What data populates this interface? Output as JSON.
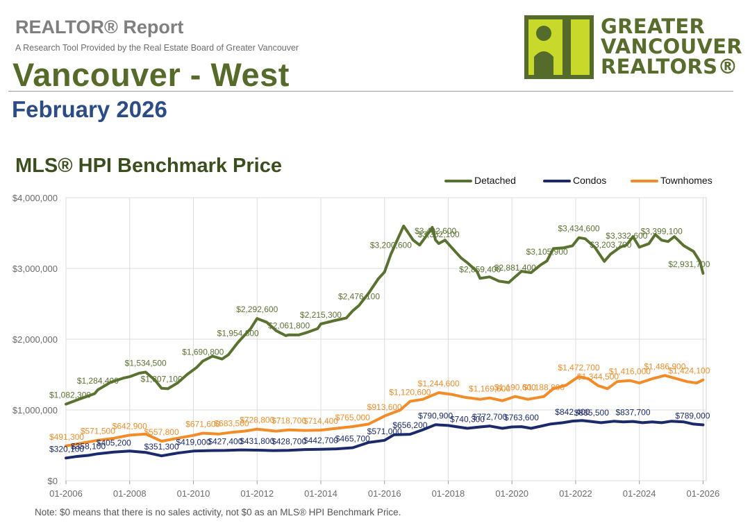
{
  "header": {
    "report_label": "REALTOR® Report",
    "report_subtitle": "A Research Tool Provided by the Real Estate Board of Greater Vancouver",
    "area_title": "Vancouver - West",
    "month": "February 2026",
    "logo_lines": [
      "GREATER",
      "VANCOUVER",
      "REALTORS®"
    ]
  },
  "colors": {
    "detached": "#5a7230",
    "condos": "#1a2a6b",
    "townhomes": "#f28c28",
    "title_green": "#566b2a",
    "month_blue": "#2b4c87"
  },
  "note": "Note: $0 means that there is no sales activity, not $0 as an MLS® HPI Benchmark Price.",
  "chart_data": {
    "type": "line",
    "title": "MLS® HPI Benchmark Price",
    "xlabel": "",
    "ylabel": "",
    "x_start": "01-2006",
    "x_end": "02-2026",
    "x_ticks": [
      "01-2006",
      "01-2008",
      "01-2010",
      "01-2012",
      "01-2014",
      "01-2016",
      "01-2018",
      "01-2020",
      "01-2022",
      "01-2024",
      "01-2026"
    ],
    "y_ticks": [
      "$0",
      "$1,000,000",
      "$2,000,000",
      "$3,000,000",
      "$4,000,000"
    ],
    "ylim": [
      0,
      4000000
    ],
    "legend_position": "top-right",
    "grid": true,
    "series": [
      {
        "name": "Detached",
        "points": [
          [
            2006.0,
            1082300
          ],
          [
            2006.4,
            1150000
          ],
          [
            2006.9,
            1230000
          ],
          [
            2007.0,
            1284400
          ],
          [
            2007.4,
            1390000
          ],
          [
            2007.8,
            1450000
          ],
          [
            2008.0,
            1470000
          ],
          [
            2008.3,
            1520000
          ],
          [
            2008.5,
            1534500
          ],
          [
            2008.8,
            1420000
          ],
          [
            2009.0,
            1307100
          ],
          [
            2009.2,
            1300000
          ],
          [
            2009.5,
            1380000
          ],
          [
            2009.8,
            1500000
          ],
          [
            2010.1,
            1600000
          ],
          [
            2010.3,
            1690800
          ],
          [
            2010.6,
            1760000
          ],
          [
            2010.9,
            1720000
          ],
          [
            2011.1,
            1780000
          ],
          [
            2011.4,
            1954800
          ],
          [
            2011.8,
            2150000
          ],
          [
            2012.0,
            2292600
          ],
          [
            2012.3,
            2240000
          ],
          [
            2012.6,
            2120000
          ],
          [
            2012.9,
            2050000
          ],
          [
            2013.0,
            2061800
          ],
          [
            2013.3,
            2060000
          ],
          [
            2013.6,
            2100000
          ],
          [
            2013.9,
            2150000
          ],
          [
            2014.0,
            2215300
          ],
          [
            2014.4,
            2260000
          ],
          [
            2014.8,
            2300000
          ],
          [
            2015.0,
            2400000
          ],
          [
            2015.2,
            2476100
          ],
          [
            2015.5,
            2650000
          ],
          [
            2015.8,
            2850000
          ],
          [
            2016.0,
            2950000
          ],
          [
            2016.2,
            3200600
          ],
          [
            2016.5,
            3500000
          ],
          [
            2016.6,
            3600000
          ],
          [
            2016.9,
            3400000
          ],
          [
            2017.1,
            3330000
          ],
          [
            2017.3,
            3450000
          ],
          [
            2017.5,
            3580000
          ],
          [
            2017.6,
            3402600
          ],
          [
            2017.7,
            3352100
          ],
          [
            2017.9,
            3400000
          ],
          [
            2018.1,
            3300000
          ],
          [
            2018.4,
            3150000
          ],
          [
            2018.6,
            3080000
          ],
          [
            2018.9,
            2960000
          ],
          [
            2019.0,
            2859400
          ],
          [
            2019.3,
            2880000
          ],
          [
            2019.6,
            2820000
          ],
          [
            2019.9,
            2800000
          ],
          [
            2020.1,
            2881400
          ],
          [
            2020.3,
            2960000
          ],
          [
            2020.6,
            2940000
          ],
          [
            2020.9,
            3050000
          ],
          [
            2021.1,
            3105900
          ],
          [
            2021.3,
            3280000
          ],
          [
            2021.6,
            3290000
          ],
          [
            2021.9,
            3320000
          ],
          [
            2022.1,
            3434600
          ],
          [
            2022.3,
            3420000
          ],
          [
            2022.6,
            3300000
          ],
          [
            2022.9,
            3100000
          ],
          [
            2023.1,
            3203700
          ],
          [
            2023.4,
            3300000
          ],
          [
            2023.6,
            3332600
          ],
          [
            2023.8,
            3450000
          ],
          [
            2024.0,
            3300000
          ],
          [
            2024.3,
            3350000
          ],
          [
            2024.5,
            3480000
          ],
          [
            2024.7,
            3399100
          ],
          [
            2024.9,
            3380000
          ],
          [
            2025.1,
            3450000
          ],
          [
            2025.4,
            3320000
          ],
          [
            2025.7,
            3240000
          ],
          [
            2025.9,
            3100000
          ],
          [
            2026.0,
            2931700
          ]
        ],
        "labels": [
          {
            "x": 2006.0,
            "y": 1082300,
            "text": "$1,082,300"
          },
          {
            "x": 2007.0,
            "y": 1284400,
            "text": "$1,284,400"
          },
          {
            "x": 2008.5,
            "y": 1534500,
            "text": "$1,534,500"
          },
          {
            "x": 2009.0,
            "y": 1307100,
            "text": "$1,307,100"
          },
          {
            "x": 2010.3,
            "y": 1690800,
            "text": "$1,690,800"
          },
          {
            "x": 2011.4,
            "y": 1954800,
            "text": "$1,954,800"
          },
          {
            "x": 2012.0,
            "y": 2292600,
            "text": "$2,292,600"
          },
          {
            "x": 2013.0,
            "y": 2061800,
            "text": "$2,061,800"
          },
          {
            "x": 2014.0,
            "y": 2215300,
            "text": "$2,215,300"
          },
          {
            "x": 2015.2,
            "y": 2476100,
            "text": "$2,476,100"
          },
          {
            "x": 2016.2,
            "y": 3200600,
            "text": "$3,200,600"
          },
          {
            "x": 2017.6,
            "y": 3402600,
            "text": "$3,402,600"
          },
          {
            "x": 2017.7,
            "y": 3352100,
            "text": "$3,352,100"
          },
          {
            "x": 2019.0,
            "y": 2859400,
            "text": "$2,859,400"
          },
          {
            "x": 2020.1,
            "y": 2881400,
            "text": "$2,881,400"
          },
          {
            "x": 2021.1,
            "y": 3105900,
            "text": "$3,105,900"
          },
          {
            "x": 2022.1,
            "y": 3434600,
            "text": "$3,434,600"
          },
          {
            "x": 2023.1,
            "y": 3203700,
            "text": "$3,203,700"
          },
          {
            "x": 2023.6,
            "y": 3332600,
            "text": "$3,332,600"
          },
          {
            "x": 2024.7,
            "y": 3399100,
            "text": "$3,399,100"
          },
          {
            "x": 2026.0,
            "y": 2931700,
            "text": "$2,931,700"
          }
        ]
      },
      {
        "name": "Condos",
        "points": [
          [
            2006.0,
            320100
          ],
          [
            2006.3,
            340000
          ],
          [
            2006.7,
            358100
          ],
          [
            2007.0,
            380000
          ],
          [
            2007.5,
            405200
          ],
          [
            2008.0,
            420000
          ],
          [
            2008.5,
            400000
          ],
          [
            2009.0,
            351300
          ],
          [
            2009.5,
            390000
          ],
          [
            2010.0,
            419000
          ],
          [
            2010.5,
            425000
          ],
          [
            2011.0,
            427400
          ],
          [
            2011.5,
            435000
          ],
          [
            2012.0,
            431800
          ],
          [
            2012.5,
            425000
          ],
          [
            2013.0,
            428700
          ],
          [
            2013.5,
            440000
          ],
          [
            2014.0,
            442700
          ],
          [
            2014.5,
            450000
          ],
          [
            2015.0,
            465700
          ],
          [
            2015.5,
            540000
          ],
          [
            2016.0,
            571000
          ],
          [
            2016.3,
            650000
          ],
          [
            2016.8,
            656200
          ],
          [
            2017.2,
            720000
          ],
          [
            2017.6,
            790900
          ],
          [
            2018.0,
            780000
          ],
          [
            2018.3,
            760000
          ],
          [
            2018.6,
            740300
          ],
          [
            2019.0,
            760000
          ],
          [
            2019.3,
            772700
          ],
          [
            2019.7,
            740000
          ],
          [
            2020.0,
            760000
          ],
          [
            2020.3,
            763600
          ],
          [
            2020.6,
            740000
          ],
          [
            2020.9,
            770000
          ],
          [
            2021.2,
            800000
          ],
          [
            2021.6,
            820000
          ],
          [
            2021.9,
            842400
          ],
          [
            2022.2,
            850000
          ],
          [
            2022.5,
            835500
          ],
          [
            2022.8,
            820000
          ],
          [
            2023.2,
            840000
          ],
          [
            2023.5,
            830000
          ],
          [
            2023.8,
            837700
          ],
          [
            2024.1,
            820000
          ],
          [
            2024.4,
            830000
          ],
          [
            2024.7,
            820000
          ],
          [
            2025.0,
            840000
          ],
          [
            2025.4,
            830000
          ],
          [
            2025.7,
            800000
          ],
          [
            2026.0,
            789000
          ]
        ],
        "labels": [
          {
            "x": 2006.0,
            "y": 320100,
            "text": "$320,100"
          },
          {
            "x": 2006.7,
            "y": 358100,
            "text": "$358,100"
          },
          {
            "x": 2007.5,
            "y": 405200,
            "text": "$405,200"
          },
          {
            "x": 2009.0,
            "y": 351300,
            "text": "$351,300"
          },
          {
            "x": 2010.0,
            "y": 419000,
            "text": "$419,000"
          },
          {
            "x": 2011.0,
            "y": 427400,
            "text": "$427,400"
          },
          {
            "x": 2012.0,
            "y": 431800,
            "text": "$431,800"
          },
          {
            "x": 2013.0,
            "y": 428700,
            "text": "$428,700"
          },
          {
            "x": 2014.0,
            "y": 442700,
            "text": "$442,700"
          },
          {
            "x": 2015.0,
            "y": 465700,
            "text": "$465,700"
          },
          {
            "x": 2016.0,
            "y": 571000,
            "text": "$571,000"
          },
          {
            "x": 2016.8,
            "y": 656200,
            "text": "$656,200"
          },
          {
            "x": 2017.6,
            "y": 790900,
            "text": "$790,900"
          },
          {
            "x": 2018.6,
            "y": 740300,
            "text": "$740,300"
          },
          {
            "x": 2019.3,
            "y": 772700,
            "text": "$772,700"
          },
          {
            "x": 2020.3,
            "y": 763600,
            "text": "$763,600"
          },
          {
            "x": 2021.9,
            "y": 842400,
            "text": "$842,400"
          },
          {
            "x": 2022.5,
            "y": 835500,
            "text": "$835,500"
          },
          {
            "x": 2023.8,
            "y": 837700,
            "text": "$837,700"
          },
          {
            "x": 2026.0,
            "y": 789000,
            "text": "$789,000"
          }
        ]
      },
      {
        "name": "Townhomes",
        "points": [
          [
            2006.0,
            491300
          ],
          [
            2006.5,
            530000
          ],
          [
            2007.0,
            571500
          ],
          [
            2007.5,
            600000
          ],
          [
            2008.0,
            642900
          ],
          [
            2008.5,
            660000
          ],
          [
            2009.0,
            557800
          ],
          [
            2009.5,
            600000
          ],
          [
            2010.0,
            640000
          ],
          [
            2010.3,
            671600
          ],
          [
            2010.8,
            660000
          ],
          [
            2011.2,
            683500
          ],
          [
            2011.6,
            700000
          ],
          [
            2012.0,
            728800
          ],
          [
            2012.6,
            700000
          ],
          [
            2013.0,
            718700
          ],
          [
            2013.5,
            710000
          ],
          [
            2014.0,
            714400
          ],
          [
            2014.5,
            740000
          ],
          [
            2015.0,
            765000
          ],
          [
            2015.5,
            800000
          ],
          [
            2016.0,
            913600
          ],
          [
            2016.5,
            1000000
          ],
          [
            2016.8,
            1120600
          ],
          [
            2017.2,
            1150000
          ],
          [
            2017.7,
            1244600
          ],
          [
            2018.1,
            1220000
          ],
          [
            2018.5,
            1180000
          ],
          [
            2019.0,
            1150000
          ],
          [
            2019.3,
            1169600
          ],
          [
            2019.7,
            1130000
          ],
          [
            2020.1,
            1190600
          ],
          [
            2020.5,
            1150000
          ],
          [
            2021.0,
            1188800
          ],
          [
            2021.3,
            1300000
          ],
          [
            2021.7,
            1350000
          ],
          [
            2022.1,
            1472700
          ],
          [
            2022.4,
            1440000
          ],
          [
            2022.7,
            1344500
          ],
          [
            2023.0,
            1300000
          ],
          [
            2023.3,
            1400000
          ],
          [
            2023.7,
            1416000
          ],
          [
            2024.0,
            1380000
          ],
          [
            2024.4,
            1440000
          ],
          [
            2024.8,
            1486900
          ],
          [
            2025.1,
            1450000
          ],
          [
            2025.5,
            1400000
          ],
          [
            2025.8,
            1380000
          ],
          [
            2026.0,
            1424100
          ]
        ],
        "labels": [
          {
            "x": 2006.0,
            "y": 491300,
            "text": "$491,300"
          },
          {
            "x": 2007.0,
            "y": 571500,
            "text": "$571,500"
          },
          {
            "x": 2008.0,
            "y": 642900,
            "text": "$642,900"
          },
          {
            "x": 2009.0,
            "y": 557800,
            "text": "$557,800"
          },
          {
            "x": 2010.3,
            "y": 671600,
            "text": "$671,600"
          },
          {
            "x": 2011.2,
            "y": 683500,
            "text": "$683,500"
          },
          {
            "x": 2012.0,
            "y": 728800,
            "text": "$728,800"
          },
          {
            "x": 2013.0,
            "y": 718700,
            "text": "$718,700"
          },
          {
            "x": 2014.0,
            "y": 714400,
            "text": "$714,400"
          },
          {
            "x": 2015.0,
            "y": 765000,
            "text": "$765,000"
          },
          {
            "x": 2016.0,
            "y": 913600,
            "text": "$913,600"
          },
          {
            "x": 2016.8,
            "y": 1120600,
            "text": "$1,120,600"
          },
          {
            "x": 2017.7,
            "y": 1244600,
            "text": "$1,244,600"
          },
          {
            "x": 2019.3,
            "y": 1169600,
            "text": "$1,169,600"
          },
          {
            "x": 2020.1,
            "y": 1190600,
            "text": "$1,190,600"
          },
          {
            "x": 2021.0,
            "y": 1188800,
            "text": "$1,188,800"
          },
          {
            "x": 2022.1,
            "y": 1472700,
            "text": "$1,472,700"
          },
          {
            "x": 2022.7,
            "y": 1344500,
            "text": "$1,344,500"
          },
          {
            "x": 2023.7,
            "y": 1416000,
            "text": "$1,416,000"
          },
          {
            "x": 2024.8,
            "y": 1486900,
            "text": "$1,486,900"
          },
          {
            "x": 2026.0,
            "y": 1424100,
            "text": "$1,424,100"
          }
        ]
      }
    ]
  }
}
